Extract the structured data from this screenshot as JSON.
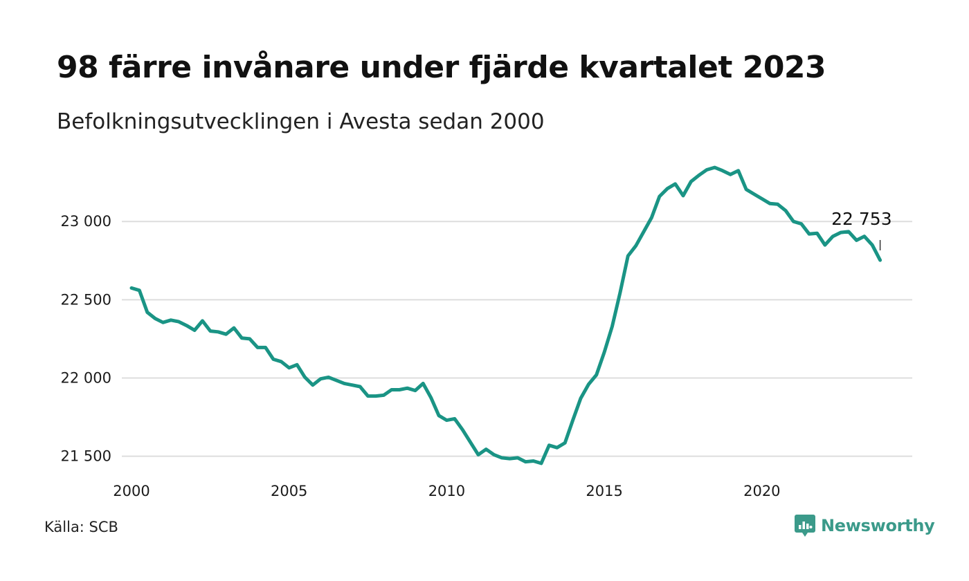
{
  "header": {
    "title": "98 färre invånare under fjärde kvartalet 2023",
    "subtitle": "Befolkningsutvecklingen i Avesta sedan 2000"
  },
  "footer": {
    "source": "Källa: SCB",
    "brand": "Newsworthy",
    "brand_icon": "newsworthy-logo-icon",
    "brand_color": "#3b9a8a"
  },
  "chart_data": {
    "type": "line",
    "title": "98 färre invånare under fjärde kvartalet 2023",
    "subtitle": "Befolkningsutvecklingen i Avesta sedan 2000",
    "xlabel": "",
    "ylabel": "",
    "x_range": [
      2000,
      2024
    ],
    "ylim": [
      21450,
      23350
    ],
    "x_ticks": [
      2000,
      2005,
      2010,
      2015,
      2020
    ],
    "x_tick_labels": [
      "2000",
      "2005",
      "2010",
      "2015",
      "2020"
    ],
    "y_ticks": [
      21500,
      22000,
      22500,
      23000
    ],
    "y_tick_labels": [
      "21 500",
      "22 000",
      "22 500",
      "23 000"
    ],
    "grid": "horizontal",
    "line_color": "#1a9485",
    "grid_color": "#dddddd",
    "annotation": {
      "text": "22 753",
      "x": 2023.75,
      "y": 22753
    },
    "series": [
      {
        "x": [
          2000.0,
          2000.25,
          2000.5,
          2000.75,
          2001.0,
          2001.25,
          2001.5,
          2001.75,
          2002.0,
          2002.25,
          2002.5,
          2002.75,
          2003.0,
          2003.25,
          2003.5,
          2003.75,
          2004.0,
          2004.25,
          2004.5,
          2004.75,
          2005.0,
          2005.25,
          2005.5,
          2005.75,
          2006.0,
          2006.25,
          2006.5,
          2006.75,
          2007.0,
          2007.25,
          2007.5,
          2007.75,
          2008.0,
          2008.25,
          2008.5,
          2008.75,
          2009.0,
          2009.25,
          2009.5,
          2009.75,
          2010.0,
          2010.25,
          2010.5,
          2010.75,
          2011.0,
          2011.25,
          2011.5,
          2011.75,
          2012.0,
          2012.25,
          2012.5,
          2012.75,
          2013.0,
          2013.25,
          2013.5,
          2013.75,
          2014.0,
          2014.25,
          2014.5,
          2014.75,
          2015.0,
          2015.25,
          2015.5,
          2015.75,
          2016.0,
          2016.25,
          2016.5,
          2016.75,
          2017.0,
          2017.25,
          2017.5,
          2017.75,
          2018.0,
          2018.25,
          2018.5,
          2018.75,
          2019.0,
          2019.25,
          2019.5,
          2019.75,
          2020.0,
          2020.25,
          2020.5,
          2020.75,
          2021.0,
          2021.25,
          2021.5,
          2021.75,
          2022.0,
          2022.25,
          2022.5,
          2022.75,
          2023.0,
          2023.25,
          2023.5,
          2023.75
        ],
        "values": [
          22575,
          22560,
          22420,
          22380,
          22355,
          22370,
          22360,
          22335,
          22305,
          22365,
          22300,
          22295,
          22280,
          22320,
          22255,
          22250,
          22195,
          22195,
          22120,
          22105,
          22065,
          22085,
          22005,
          21955,
          21995,
          22005,
          21985,
          21965,
          21955,
          21945,
          21885,
          21885,
          21890,
          21925,
          21925,
          21935,
          21920,
          21965,
          21875,
          21760,
          21730,
          21740,
          21670,
          21590,
          21510,
          21545,
          21510,
          21490,
          21485,
          21490,
          21465,
          21470,
          21455,
          21570,
          21555,
          21585,
          21730,
          21870,
          21960,
          22020,
          22165,
          22330,
          22545,
          22780,
          22845,
          22935,
          23025,
          23160,
          23210,
          23240,
          23165,
          23255,
          23295,
          23330,
          23345,
          23325,
          23300,
          23325,
          23205,
          23175,
          23145,
          23115,
          23110,
          23070,
          23000,
          22985,
          22920,
          22925,
          22850,
          22905,
          22930,
          22935,
          22880,
          22905,
          22850,
          22753
        ]
      }
    ]
  }
}
